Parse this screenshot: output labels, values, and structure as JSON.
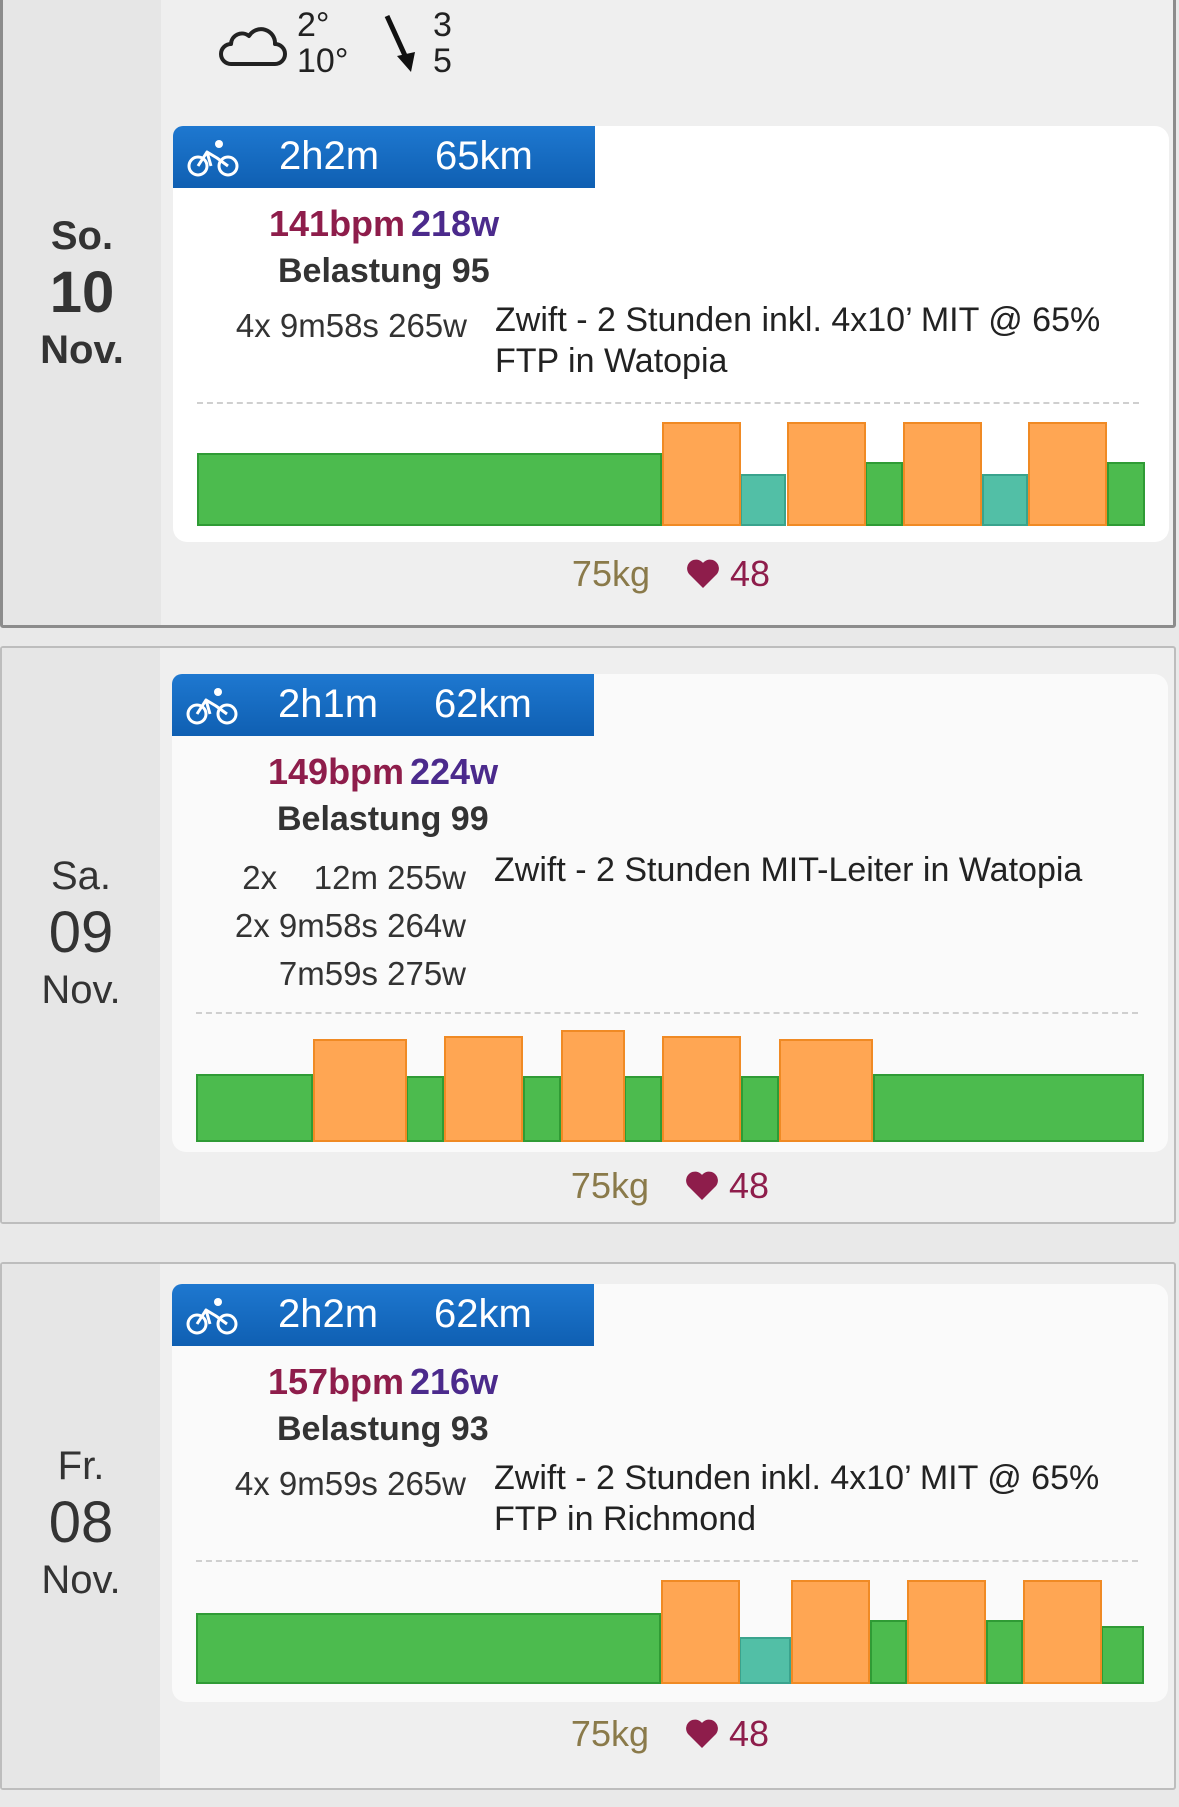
{
  "weather": {
    "icon": "cloud-icon",
    "temp_low": "2°",
    "temp_high": "10°",
    "wind_icon": "wind-arrow-icon",
    "wind_a": "3",
    "wind_b": "5"
  },
  "days": [
    {
      "weekday": "So.",
      "day": "10",
      "month": "Nov.",
      "activity_icon": "bike-icon",
      "duration": "2h2m",
      "distance": "65km",
      "bpm": "141bpm",
      "watts": "218w",
      "load": "Belastung 95",
      "intervals": [
        "4x 9m58s 265w"
      ],
      "title": "Zwift - 2 Stunden inkl. 4x10’ MIT @ 65% FTP in Watopia",
      "weight": "75kg",
      "rest_hr": "48",
      "zones": [
        {
          "zone": "green",
          "start": 0,
          "end": 0.49,
          "level": 0.7
        },
        {
          "zone": "orange",
          "start": 0.49,
          "end": 0.573,
          "level": 1.0
        },
        {
          "zone": "teal",
          "start": 0.573,
          "end": 0.622,
          "level": 0.5
        },
        {
          "zone": "orange",
          "start": 0.622,
          "end": 0.705,
          "level": 1.0
        },
        {
          "zone": "green",
          "start": 0.705,
          "end": 0.745,
          "level": 0.62
        },
        {
          "zone": "orange",
          "start": 0.745,
          "end": 0.828,
          "level": 1.0
        },
        {
          "zone": "teal",
          "start": 0.828,
          "end": 0.877,
          "level": 0.5
        },
        {
          "zone": "orange",
          "start": 0.877,
          "end": 0.96,
          "level": 1.0
        },
        {
          "zone": "green",
          "start": 0.96,
          "end": 1.0,
          "level": 0.62
        }
      ]
    },
    {
      "weekday": "Sa.",
      "day": "09",
      "month": "Nov.",
      "activity_icon": "bike-icon",
      "duration": "2h1m",
      "distance": "62km",
      "bpm": "149bpm",
      "watts": "224w",
      "load": "Belastung 99",
      "intervals": [
        "2x    12m 255w",
        "2x 9m58s 264w",
        "7m59s 275w"
      ],
      "title": "Zwift - 2 Stunden MIT-Leiter in Watopia",
      "weight": "75kg",
      "rest_hr": "48",
      "zones": [
        {
          "zone": "green",
          "start": 0,
          "end": 0.123,
          "level": 0.61
        },
        {
          "zone": "orange",
          "start": 0.123,
          "end": 0.222,
          "level": 0.92
        },
        {
          "zone": "green",
          "start": 0.222,
          "end": 0.262,
          "level": 0.59
        },
        {
          "zone": "orange",
          "start": 0.262,
          "end": 0.345,
          "level": 0.95
        },
        {
          "zone": "green",
          "start": 0.345,
          "end": 0.385,
          "level": 0.59
        },
        {
          "zone": "orange",
          "start": 0.385,
          "end": 0.452,
          "level": 1.0
        },
        {
          "zone": "green",
          "start": 0.452,
          "end": 0.492,
          "level": 0.59
        },
        {
          "zone": "orange",
          "start": 0.492,
          "end": 0.575,
          "level": 0.95
        },
        {
          "zone": "green",
          "start": 0.575,
          "end": 0.615,
          "level": 0.59
        },
        {
          "zone": "orange",
          "start": 0.615,
          "end": 0.714,
          "level": 0.92
        },
        {
          "zone": "green",
          "start": 0.714,
          "end": 1.0,
          "level": 0.61
        }
      ]
    },
    {
      "weekday": "Fr.",
      "day": "08",
      "month": "Nov.",
      "activity_icon": "bike-icon",
      "duration": "2h2m",
      "distance": "62km",
      "bpm": "157bpm",
      "watts": "216w",
      "load": "Belastung 93",
      "intervals": [
        "4x 9m59s 265w"
      ],
      "title": "Zwift - 2 Stunden inkl. 4x10’ MIT @ 65% FTP in Richmond",
      "weight": "75kg",
      "rest_hr": "48",
      "zones": [
        {
          "zone": "green",
          "start": 0,
          "end": 0.49,
          "level": 0.68
        },
        {
          "zone": "orange",
          "start": 0.49,
          "end": 0.573,
          "level": 1.0
        },
        {
          "zone": "teal",
          "start": 0.573,
          "end": 0.628,
          "level": 0.45
        },
        {
          "zone": "orange",
          "start": 0.628,
          "end": 0.711,
          "level": 1.0
        },
        {
          "zone": "green",
          "start": 0.711,
          "end": 0.75,
          "level": 0.62
        },
        {
          "zone": "orange",
          "start": 0.75,
          "end": 0.833,
          "level": 1.0
        },
        {
          "zone": "green",
          "start": 0.833,
          "end": 0.872,
          "level": 0.62
        },
        {
          "zone": "orange",
          "start": 0.872,
          "end": 0.955,
          "level": 1.0
        },
        {
          "zone": "green",
          "start": 0.955,
          "end": 1.0,
          "level": 0.56
        }
      ]
    }
  ]
}
